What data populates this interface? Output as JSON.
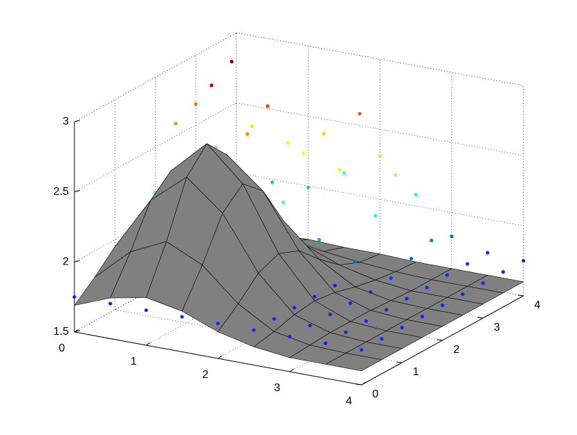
{
  "chart_data": {
    "type": "surface3d",
    "x": [
      0,
      0.5,
      1,
      1.5,
      2,
      2.5,
      3,
      3.5,
      4
    ],
    "y": [
      0,
      0.5,
      1,
      1.5,
      2,
      2.5,
      3,
      3.5,
      4
    ],
    "xlim": [
      0,
      4
    ],
    "ylim": [
      0,
      4
    ],
    "zlim": [
      1.5,
      3
    ],
    "xticks": [
      0,
      1,
      2,
      3,
      4
    ],
    "yticks": [
      0,
      1,
      2,
      3,
      4
    ],
    "zticks": [
      1.5,
      2,
      2.5,
      3
    ],
    "grid": true,
    "series": [
      {
        "type": "surface",
        "color": "#808080",
        "z": [
          [
            1.69,
            1.79,
            1.84,
            1.79,
            1.69,
            1.63,
            1.6,
            1.6,
            1.6
          ],
          [
            1.81,
            2.04,
            2.16,
            2.04,
            1.81,
            1.66,
            1.61,
            1.6,
            1.6
          ],
          [
            1.95,
            2.33,
            2.54,
            2.33,
            1.95,
            1.7,
            1.62,
            1.6,
            1.6
          ],
          [
            2.01,
            2.46,
            2.7,
            2.46,
            2.01,
            1.72,
            1.62,
            1.6,
            1.6
          ],
          [
            1.95,
            2.33,
            2.54,
            2.33,
            1.95,
            1.7,
            1.62,
            1.6,
            1.6
          ],
          [
            1.81,
            2.04,
            2.16,
            2.04,
            1.81,
            1.66,
            1.61,
            1.6,
            1.6
          ],
          [
            1.69,
            1.79,
            1.84,
            1.79,
            1.69,
            1.63,
            1.6,
            1.6,
            1.6
          ],
          [
            1.63,
            1.66,
            1.68,
            1.66,
            1.63,
            1.61,
            1.6,
            1.6,
            1.6
          ],
          [
            1.61,
            1.61,
            1.62,
            1.61,
            1.61,
            1.6,
            1.6,
            1.6,
            1.6
          ]
        ]
      },
      {
        "type": "scatter",
        "colormap": "jet",
        "z": [
          [
            1.75,
            1.75,
            1.75,
            1.75,
            1.75,
            1.75,
            1.75,
            1.75,
            1.75
          ],
          [
            1.75,
            1.75,
            1.75,
            1.75,
            1.75,
            1.75,
            1.75,
            1.75,
            1.75
          ],
          [
            1.77,
            1.77,
            1.77,
            1.76,
            1.75,
            1.75,
            1.75,
            1.75,
            1.75
          ],
          [
            1.86,
            1.91,
            1.86,
            1.8,
            1.76,
            1.75,
            1.75,
            1.75,
            1.75
          ],
          [
            2.18,
            2.34,
            2.18,
            1.92,
            1.79,
            1.75,
            1.75,
            1.75,
            1.75
          ],
          [
            2.59,
            2.91,
            2.61,
            2.17,
            1.95,
            1.84,
            1.77,
            1.75,
            1.75
          ],
          [
            2.65,
            3.0,
            2.73,
            2.44,
            2.37,
            2.09,
            1.83,
            1.76,
            1.75
          ],
          [
            2.26,
            2.46,
            2.39,
            2.5,
            2.69,
            2.3,
            1.88,
            1.76,
            1.75
          ],
          [
            1.91,
            1.98,
            1.99,
            2.14,
            2.31,
            2.08,
            1.83,
            1.76,
            1.75
          ]
        ]
      }
    ]
  }
}
